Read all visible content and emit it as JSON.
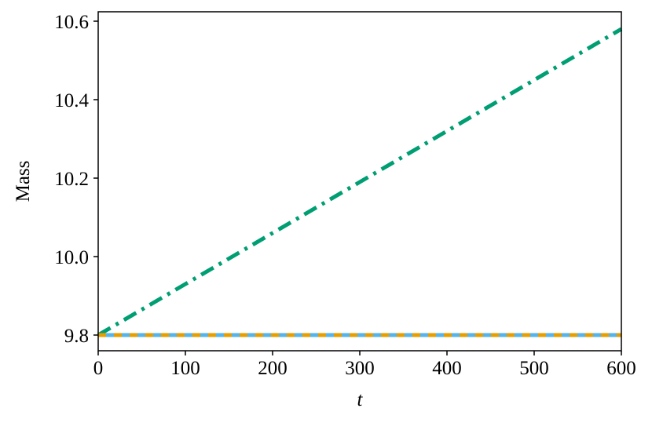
{
  "chart_data": {
    "type": "line",
    "x_label": "t",
    "y_label": "Mass",
    "x": [
      0,
      100,
      200,
      300,
      400,
      500,
      600
    ],
    "series": [
      {
        "color": "#009e73",
        "linestyle": "dashdot",
        "values": [
          9.8,
          9.93,
          10.06,
          10.19,
          10.32,
          10.45,
          10.58
        ]
      },
      {
        "color": "#56b4e9",
        "linestyle": "solid",
        "values": [
          9.8,
          9.8,
          9.8,
          9.8,
          9.8,
          9.8,
          9.8
        ]
      },
      {
        "color": "#e69f00",
        "linestyle": "dashed",
        "values": [
          9.8,
          9.8,
          9.8,
          9.8,
          9.8,
          9.8,
          9.8
        ]
      }
    ],
    "xlim": [
      0,
      600
    ],
    "xticks": [
      0,
      100,
      200,
      300,
      400,
      500,
      600
    ],
    "ylim": [
      9.76,
      10.624
    ],
    "yticks": [
      9.8,
      {
        "value": 10,
        "label": "10.0"
      },
      10.2,
      10.4,
      10.6
    ],
    "grid": false
  }
}
